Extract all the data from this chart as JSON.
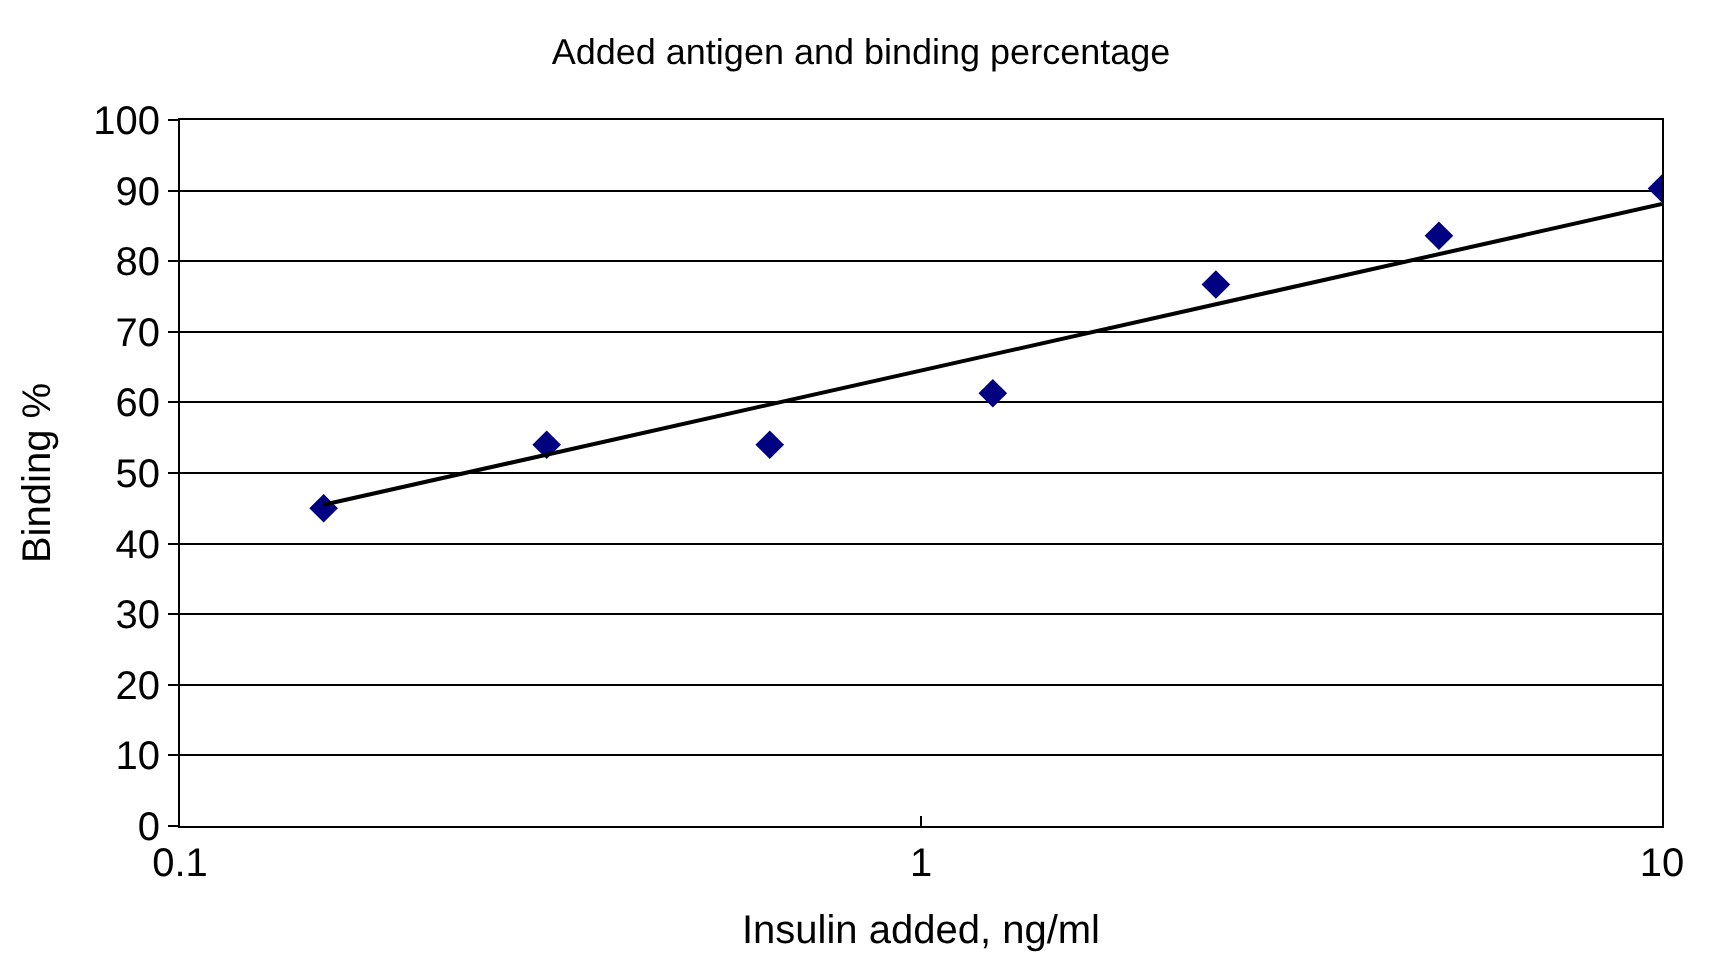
{
  "chart_data": {
    "type": "scatter",
    "title": "Added antigen and binding percentage",
    "xlabel": "Insulin added, ng/ml",
    "ylabel": "Binding %",
    "log": "x",
    "xlim": [
      0.1,
      10
    ],
    "xticks": [
      0.1,
      1,
      10
    ],
    "ylim": [
      0,
      100
    ],
    "yticks": [
      0,
      10,
      20,
      30,
      40,
      50,
      60,
      70,
      80,
      90,
      100
    ],
    "grid": "y",
    "marker": "diamond",
    "series": [
      {
        "color": "#000080",
        "x": [
          0.15625,
          0.3125,
          0.625,
          1.25,
          2.5,
          5,
          10
        ],
        "values": [
          45,
          54,
          54,
          61.3,
          76.7,
          83.6,
          90.3
        ]
      },
      {
        "type": "line",
        "color": "#000000",
        "marker": "none",
        "line_style": "solid",
        "x": [
          0.15625,
          10
        ],
        "values": [
          45.5,
          88.1
        ]
      }
    ]
  }
}
